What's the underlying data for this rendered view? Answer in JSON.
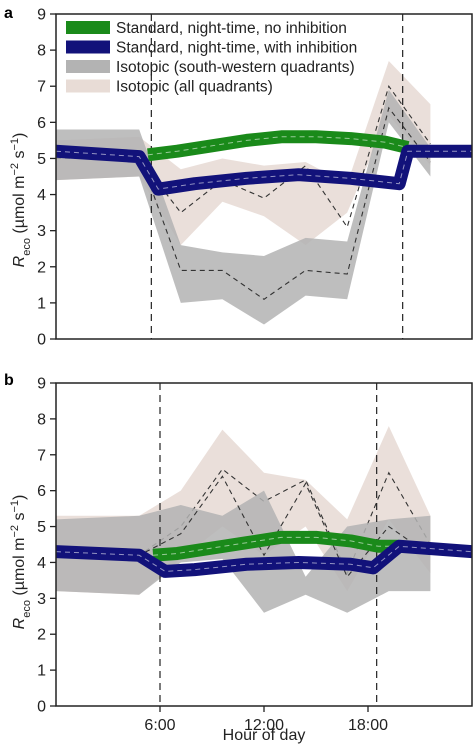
{
  "chart_data": [
    {
      "panel": "a",
      "type": "line",
      "ylabel": "R_eco (µmol m⁻² s⁻¹)",
      "xlabel": "",
      "xlim": [
        0,
        24
      ],
      "ylim": [
        0,
        9
      ],
      "yticks": [
        0,
        1,
        2,
        3,
        4,
        5,
        6,
        7,
        8,
        9
      ],
      "xticks": [],
      "vlines": [
        5.5,
        20
      ],
      "legend": {
        "placement": "top-left",
        "entries": [
          {
            "label": "Standard, night-time, no inhibition",
            "color": "#1a8a1a"
          },
          {
            "label": "Standard, night-time, with inhibition",
            "color": "#12127a"
          },
          {
            "label": "Isotopic (south-western quadrants)",
            "color": "#b3b3b3"
          },
          {
            "label": "Isotopic (all quadrants)",
            "color": "#e8dcd6"
          }
        ]
      },
      "series": [
        {
          "name": "Isotopic (all quadrants)",
          "kind": "band",
          "color": "#e8dcd6",
          "x": [
            0,
            4.8,
            7.2,
            9.6,
            12,
            14.4,
            16.8,
            19.2,
            21.6
          ],
          "lower": [
            4.4,
            4.5,
            2.6,
            3.8,
            3.4,
            2.6,
            3.5,
            6.2,
            4.8
          ],
          "upper": [
            5.5,
            5.6,
            4.7,
            5.0,
            4.8,
            4.9,
            4.3,
            7.7,
            6.5
          ],
          "mid": [
            5.0,
            5.0,
            3.5,
            4.4,
            3.9,
            4.8,
            3.1,
            7.0,
            5.4
          ]
        },
        {
          "name": "Isotopic (south-western quadrants)",
          "kind": "band",
          "color": "#b3b3b3",
          "x": [
            0,
            4.8,
            7.2,
            9.6,
            12,
            14.4,
            16.8,
            19.2,
            21.6
          ],
          "lower": [
            4.4,
            4.5,
            1.0,
            1.1,
            0.4,
            1.2,
            1.1,
            6.0,
            4.5
          ],
          "upper": [
            5.8,
            5.8,
            2.6,
            2.4,
            2.3,
            2.8,
            2.7,
            6.9,
            5.3
          ],
          "mid": [
            5.1,
            5.1,
            1.9,
            1.9,
            1.1,
            1.9,
            1.8,
            6.4,
            4.9
          ]
        },
        {
          "name": "Standard, night-time, no inhibition",
          "kind": "thick-line",
          "color": "#1a8a1a",
          "x": [
            5.3,
            7,
            9,
            11,
            13,
            15,
            17,
            19,
            20.3
          ],
          "y": [
            5.1,
            5.2,
            5.35,
            5.5,
            5.6,
            5.6,
            5.55,
            5.45,
            5.3
          ]
        },
        {
          "name": "Standard, night-time, with inhibition",
          "kind": "thick-line",
          "color": "#12127a",
          "x": [
            0,
            4.8,
            5.9,
            8,
            11,
            14,
            17,
            19.8,
            20.3,
            24
          ],
          "y": [
            5.2,
            5.05,
            4.15,
            4.3,
            4.45,
            4.55,
            4.45,
            4.3,
            5.2,
            5.2
          ]
        }
      ]
    },
    {
      "panel": "b",
      "type": "line",
      "ylabel": "R_eco (µmol m⁻² s⁻¹)",
      "xlabel": "Hour of day",
      "xlim": [
        0,
        24
      ],
      "ylim": [
        0,
        9
      ],
      "yticks": [
        0,
        1,
        2,
        3,
        4,
        5,
        6,
        7,
        8,
        9
      ],
      "xticks": [
        6,
        12,
        18
      ],
      "xticklabels": [
        "6:00",
        "12:00",
        "18:00"
      ],
      "vlines": [
        6,
        18.5
      ],
      "series": [
        {
          "name": "Isotopic (all quadrants)",
          "kind": "band",
          "color": "#e8dcd6",
          "x": [
            0,
            4.8,
            7.2,
            9.6,
            12,
            14.4,
            16.8,
            19.2,
            21.6
          ],
          "lower": [
            3.2,
            3.1,
            4.1,
            5.0,
            4.2,
            5.0,
            3.2,
            5.2,
            3.7
          ],
          "upper": [
            5.3,
            5.3,
            6.0,
            7.7,
            6.5,
            6.3,
            5.2,
            7.8,
            5.3
          ],
          "mid": [
            4.2,
            4.2,
            5.0,
            6.6,
            5.7,
            6.3,
            3.7,
            6.5,
            4.5
          ]
        },
        {
          "name": "Isotopic (south-western quadrants)",
          "kind": "band",
          "color": "#b3b3b3",
          "x": [
            0,
            4.8,
            7.2,
            9.6,
            12,
            14.4,
            16.8,
            19.2,
            21.6
          ],
          "lower": [
            3.2,
            3.1,
            4.0,
            4.1,
            2.6,
            3.1,
            2.6,
            3.2,
            3.2
          ],
          "upper": [
            5.2,
            5.3,
            5.6,
            5.3,
            6.0,
            3.6,
            5.0,
            5.2,
            5.3
          ],
          "mid": [
            4.2,
            4.2,
            4.8,
            6.4,
            4.2,
            6.2,
            3.6,
            5.0,
            4.2
          ]
        },
        {
          "name": "Standard, night-time, no inhibition",
          "kind": "thick-line",
          "color": "#1a8a1a",
          "x": [
            5.6,
            7,
            9,
            11,
            13,
            15,
            17,
            18.6,
            19.8
          ],
          "y": [
            4.2,
            4.25,
            4.4,
            4.55,
            4.7,
            4.7,
            4.6,
            4.45,
            4.45
          ]
        },
        {
          "name": "Standard, night-time, with inhibition",
          "kind": "thick-line",
          "color": "#12127a",
          "x": [
            0,
            4.8,
            6.3,
            8,
            11,
            14,
            17,
            18.3,
            19.8,
            24
          ],
          "y": [
            4.3,
            4.2,
            3.75,
            3.8,
            3.95,
            4.0,
            3.95,
            3.85,
            4.45,
            4.3
          ]
        }
      ]
    }
  ],
  "panels": {
    "a": {
      "letter": "a",
      "yticks": [
        "0",
        "1",
        "2",
        "3",
        "4",
        "5",
        "6",
        "7",
        "8",
        "9"
      ]
    },
    "b": {
      "letter": "b",
      "yticks": [
        "0",
        "1",
        "2",
        "3",
        "4",
        "5",
        "6",
        "7",
        "8",
        "9"
      ],
      "xticks": [
        "6:00",
        "12:00",
        "18:00"
      ],
      "xlabel": "Hour of day"
    }
  },
  "ylabel_parts": {
    "R": "R",
    "sub": "eco",
    "open": " (µmol m",
    "exp1": "−2",
    "mid": " s",
    "exp2": "−1",
    "close": ")"
  }
}
